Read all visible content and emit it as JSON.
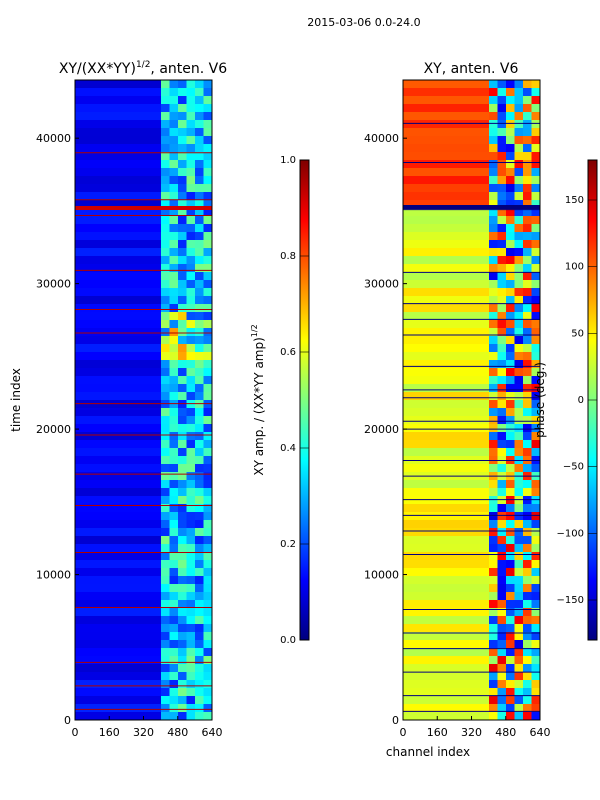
{
  "figure_title": "2015-03-06 0.0-24.0",
  "colors": {
    "jet": [
      "#00007f",
      "#0000ff",
      "#007fff",
      "#00ffff",
      "#7fff7f",
      "#ffff00",
      "#ff7f00",
      "#ff0000",
      "#7f0000"
    ],
    "line": "#b00000"
  },
  "chart_data": [
    {
      "type": "heatmap",
      "title": "XY/(XX*YY)",
      "title_sup": "1/2",
      "title_suffix": ", anten. V6",
      "xlabel": "",
      "ylabel": "time index",
      "xlim": [
        0,
        640
      ],
      "ylim": [
        0,
        44000
      ],
      "xticks": [
        0,
        160,
        320,
        480,
        640
      ],
      "yticks": [
        0,
        10000,
        20000,
        30000,
        40000
      ],
      "xtick_labels": [
        "0",
        "160",
        "320",
        "480",
        "640"
      ],
      "ytick_labels": [
        "0",
        "10000",
        "20000",
        "30000",
        "40000"
      ],
      "colorbar": {
        "label": "XY amp. / (XX*YY amp)",
        "label_sup": "1/2",
        "min": 0.0,
        "max": 1.0,
        "ticks": [
          0.0,
          0.2,
          0.4,
          0.6,
          0.8,
          1.0
        ],
        "tick_labels": [
          "0.0",
          "0.2",
          "0.4",
          "0.6",
          "0.8",
          "1.0"
        ]
      }
    },
    {
      "type": "heatmap",
      "title": "XY, anten. V6",
      "xlabel": "channel index",
      "ylabel": "",
      "xlim": [
        0,
        640
      ],
      "ylim": [
        0,
        44000
      ],
      "xticks": [
        0,
        160,
        320,
        480,
        640
      ],
      "yticks": [
        0,
        10000,
        20000,
        30000,
        40000
      ],
      "xtick_labels": [
        "0",
        "160",
        "320",
        "480",
        "640"
      ],
      "ytick_labels": [
        "0",
        "10000",
        "20000",
        "30000",
        "40000"
      ],
      "colorbar": {
        "label": "phase (deg.)",
        "min": -180,
        "max": 180,
        "ticks": [
          -150,
          -100,
          -50,
          0,
          50,
          100,
          150
        ],
        "tick_labels": [
          "−150",
          "−100",
          "−50",
          "0",
          "50",
          "100",
          "150"
        ]
      }
    }
  ]
}
